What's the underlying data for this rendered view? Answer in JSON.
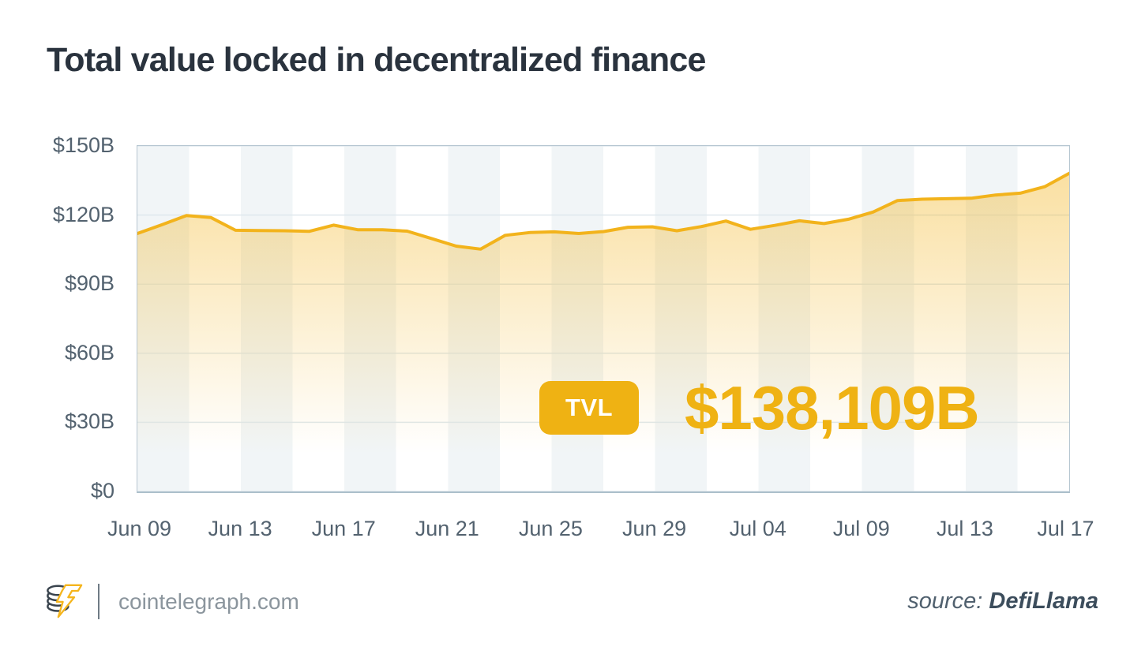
{
  "title": "Total value locked in decentralized finance",
  "chart_data": {
    "type": "area",
    "title": "Total value locked in decentralized finance",
    "x": [
      "Jun 09",
      "Jun 10",
      "Jun 11",
      "Jun 12",
      "Jun 13",
      "Jun 14",
      "Jun 15",
      "Jun 16",
      "Jun 17",
      "Jun 18",
      "Jun 19",
      "Jun 20",
      "Jun 21",
      "Jun 22",
      "Jun 23",
      "Jun 24",
      "Jun 25",
      "Jun 26",
      "Jun 27",
      "Jun 28",
      "Jun 29",
      "Jun 30",
      "Jul 01",
      "Jul 02",
      "Jul 03",
      "Jul 04",
      "Jul 05",
      "Jul 06",
      "Jul 07",
      "Jul 08",
      "Jul 09",
      "Jul 10",
      "Jul 11",
      "Jul 12",
      "Jul 13",
      "Jul 14",
      "Jul 15",
      "Jul 16",
      "Jul 17"
    ],
    "values": [
      112.0,
      115.8,
      119.8,
      118.9,
      113.4,
      113.3,
      113.2,
      112.9,
      115.6,
      113.6,
      113.6,
      113.0,
      109.8,
      106.5,
      105.2,
      111.2,
      112.4,
      112.7,
      112.0,
      112.8,
      114.7,
      114.9,
      113.2,
      115.0,
      117.4,
      113.8,
      115.5,
      117.5,
      116.3,
      118.2,
      121.3,
      126.3,
      126.9,
      127.1,
      127.3,
      128.7,
      129.5,
      132.3,
      138.109
    ],
    "unit": "USD billions",
    "xlabel": "",
    "ylabel": "",
    "ylim": [
      0,
      150
    ],
    "y_tick_values": [
      150,
      120,
      90,
      60,
      30,
      0
    ],
    "y_tick_labels": [
      "$150B",
      "$120B",
      "$90B",
      "$60B",
      "$30B",
      "$0"
    ],
    "x_tick_labels": [
      "Jun 09",
      "Jun 13",
      "Jun 17",
      "Jun 21",
      "Jun 25",
      "Jun 29",
      "Jul 04",
      "Jul 09",
      "Jul 13",
      "Jul 17"
    ],
    "grid": "horizontal",
    "legend": "none",
    "colors": {
      "line": "#F2B31C",
      "fill_top": "rgba(242,179,28,0.45)",
      "fill_bottom": "rgba(242,179,28,0)",
      "band": "#F1F5F7",
      "gridline": "#DFE8ED",
      "plot_border": "#B6C6D1"
    }
  },
  "overlay": {
    "badge_label": "TVL",
    "value_text": "$138,109B",
    "accent_color": "#EFB213"
  },
  "footer": {
    "site": "cointelegraph.com",
    "source_label": "source:",
    "source_name": "DefiLlama",
    "logo_icon": "cointelegraph-coins-lightning-logo"
  }
}
